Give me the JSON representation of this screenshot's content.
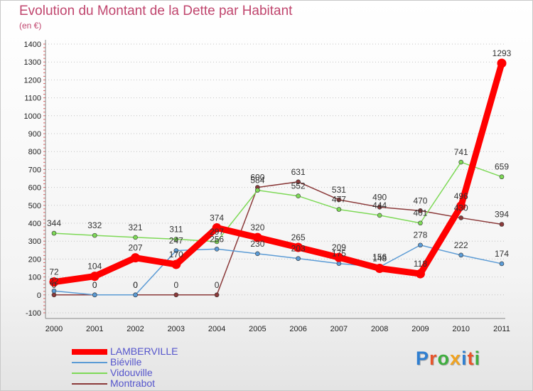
{
  "title": "Evolution du Montant de la Dette par Habitant",
  "subtitle": "(en €)",
  "brand": {
    "letters": [
      {
        "ch": "P",
        "color": "#2f7fd1"
      },
      {
        "ch": "r",
        "color": "#e8542a"
      },
      {
        "ch": "o",
        "color": "#3fae3f"
      },
      {
        "ch": "x",
        "color": "#f0a320"
      },
      {
        "ch": "i",
        "color": "#2f7fd1"
      },
      {
        "ch": "t",
        "color": "#e8542a"
      },
      {
        "ch": "i",
        "color": "#3fae3f"
      }
    ]
  },
  "chart_data": {
    "type": "line",
    "x": [
      "2000",
      "2001",
      "2002",
      "2003",
      "2004",
      "2005",
      "2006",
      "2007",
      "2008",
      "2009",
      "2010",
      "2011"
    ],
    "ylim": [
      -100,
      1400
    ],
    "yticks": [
      -100,
      0,
      100,
      200,
      300,
      400,
      500,
      600,
      700,
      800,
      900,
      1000,
      1100,
      1200,
      1300,
      1400
    ],
    "grid": "horizontal-dotted",
    "legend_position": "bottom-left",
    "series": [
      {
        "name": "LAMBERVILLE",
        "color": "#ff0000",
        "values": [
          72,
          104,
          207,
          170,
          374,
          320,
          265,
          209,
          148,
          118,
          496,
          1293
        ],
        "labels": [
          "72",
          "104",
          "207",
          "170",
          "374",
          "320",
          "265",
          "209",
          "148",
          "118",
          "496",
          "1293"
        ]
      },
      {
        "name": "Biéville",
        "color": "#5b9bd5",
        "values": [
          22,
          0,
          0,
          247,
          256,
          230,
          203,
          175,
          156,
          278,
          222,
          174
        ],
        "labels": [
          "22",
          "0",
          "0",
          "247",
          "256",
          "230",
          "203",
          "175",
          "156",
          "278",
          "222",
          "174"
        ]
      },
      {
        "name": "Vidouville",
        "color": "#7ed957",
        "values": [
          344,
          332,
          321,
          311,
          297,
          584,
          552,
          477,
          444,
          401,
          741,
          659
        ],
        "labels": [
          "344",
          "332",
          "321",
          "311",
          "297",
          "584",
          "552",
          "477",
          "444",
          "401",
          "741",
          "659"
        ]
      },
      {
        "name": "Montrabot",
        "color": "#8b3a3a",
        "values": [
          0,
          0,
          0,
          0,
          0,
          600,
          631,
          531,
          490,
          470,
          430,
          394
        ],
        "labels": [
          "0",
          "0",
          "0",
          "0",
          "0",
          "600",
          "631",
          "531",
          "490",
          "470",
          "430",
          "394"
        ]
      }
    ]
  }
}
